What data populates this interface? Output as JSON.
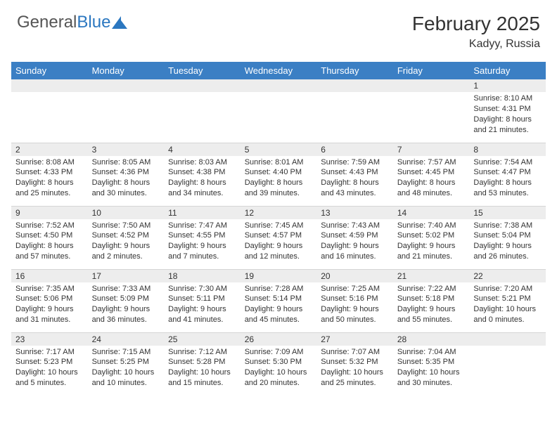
{
  "logo": {
    "text_gray": "General",
    "text_blue": "Blue"
  },
  "heading": {
    "title": "February 2025",
    "location": "Kadyy, Russia"
  },
  "weekdays": [
    "Sunday",
    "Monday",
    "Tuesday",
    "Wednesday",
    "Thursday",
    "Friday",
    "Saturday"
  ],
  "colors": {
    "header_bg": "#3b7fc4",
    "header_text": "#ffffff",
    "daynum_bg": "#ededed",
    "logo_blue": "#2b77c0",
    "border": "#d5d5d5"
  },
  "weeks": [
    [
      {
        "day": "",
        "sunrise": "",
        "sunset": "",
        "daylight": ""
      },
      {
        "day": "",
        "sunrise": "",
        "sunset": "",
        "daylight": ""
      },
      {
        "day": "",
        "sunrise": "",
        "sunset": "",
        "daylight": ""
      },
      {
        "day": "",
        "sunrise": "",
        "sunset": "",
        "daylight": ""
      },
      {
        "day": "",
        "sunrise": "",
        "sunset": "",
        "daylight": ""
      },
      {
        "day": "",
        "sunrise": "",
        "sunset": "",
        "daylight": ""
      },
      {
        "day": "1",
        "sunrise": "Sunrise: 8:10 AM",
        "sunset": "Sunset: 4:31 PM",
        "daylight": "Daylight: 8 hours and 21 minutes."
      }
    ],
    [
      {
        "day": "2",
        "sunrise": "Sunrise: 8:08 AM",
        "sunset": "Sunset: 4:33 PM",
        "daylight": "Daylight: 8 hours and 25 minutes."
      },
      {
        "day": "3",
        "sunrise": "Sunrise: 8:05 AM",
        "sunset": "Sunset: 4:36 PM",
        "daylight": "Daylight: 8 hours and 30 minutes."
      },
      {
        "day": "4",
        "sunrise": "Sunrise: 8:03 AM",
        "sunset": "Sunset: 4:38 PM",
        "daylight": "Daylight: 8 hours and 34 minutes."
      },
      {
        "day": "5",
        "sunrise": "Sunrise: 8:01 AM",
        "sunset": "Sunset: 4:40 PM",
        "daylight": "Daylight: 8 hours and 39 minutes."
      },
      {
        "day": "6",
        "sunrise": "Sunrise: 7:59 AM",
        "sunset": "Sunset: 4:43 PM",
        "daylight": "Daylight: 8 hours and 43 minutes."
      },
      {
        "day": "7",
        "sunrise": "Sunrise: 7:57 AM",
        "sunset": "Sunset: 4:45 PM",
        "daylight": "Daylight: 8 hours and 48 minutes."
      },
      {
        "day": "8",
        "sunrise": "Sunrise: 7:54 AM",
        "sunset": "Sunset: 4:47 PM",
        "daylight": "Daylight: 8 hours and 53 minutes."
      }
    ],
    [
      {
        "day": "9",
        "sunrise": "Sunrise: 7:52 AM",
        "sunset": "Sunset: 4:50 PM",
        "daylight": "Daylight: 8 hours and 57 minutes."
      },
      {
        "day": "10",
        "sunrise": "Sunrise: 7:50 AM",
        "sunset": "Sunset: 4:52 PM",
        "daylight": "Daylight: 9 hours and 2 minutes."
      },
      {
        "day": "11",
        "sunrise": "Sunrise: 7:47 AM",
        "sunset": "Sunset: 4:55 PM",
        "daylight": "Daylight: 9 hours and 7 minutes."
      },
      {
        "day": "12",
        "sunrise": "Sunrise: 7:45 AM",
        "sunset": "Sunset: 4:57 PM",
        "daylight": "Daylight: 9 hours and 12 minutes."
      },
      {
        "day": "13",
        "sunrise": "Sunrise: 7:43 AM",
        "sunset": "Sunset: 4:59 PM",
        "daylight": "Daylight: 9 hours and 16 minutes."
      },
      {
        "day": "14",
        "sunrise": "Sunrise: 7:40 AM",
        "sunset": "Sunset: 5:02 PM",
        "daylight": "Daylight: 9 hours and 21 minutes."
      },
      {
        "day": "15",
        "sunrise": "Sunrise: 7:38 AM",
        "sunset": "Sunset: 5:04 PM",
        "daylight": "Daylight: 9 hours and 26 minutes."
      }
    ],
    [
      {
        "day": "16",
        "sunrise": "Sunrise: 7:35 AM",
        "sunset": "Sunset: 5:06 PM",
        "daylight": "Daylight: 9 hours and 31 minutes."
      },
      {
        "day": "17",
        "sunrise": "Sunrise: 7:33 AM",
        "sunset": "Sunset: 5:09 PM",
        "daylight": "Daylight: 9 hours and 36 minutes."
      },
      {
        "day": "18",
        "sunrise": "Sunrise: 7:30 AM",
        "sunset": "Sunset: 5:11 PM",
        "daylight": "Daylight: 9 hours and 41 minutes."
      },
      {
        "day": "19",
        "sunrise": "Sunrise: 7:28 AM",
        "sunset": "Sunset: 5:14 PM",
        "daylight": "Daylight: 9 hours and 45 minutes."
      },
      {
        "day": "20",
        "sunrise": "Sunrise: 7:25 AM",
        "sunset": "Sunset: 5:16 PM",
        "daylight": "Daylight: 9 hours and 50 minutes."
      },
      {
        "day": "21",
        "sunrise": "Sunrise: 7:22 AM",
        "sunset": "Sunset: 5:18 PM",
        "daylight": "Daylight: 9 hours and 55 minutes."
      },
      {
        "day": "22",
        "sunrise": "Sunrise: 7:20 AM",
        "sunset": "Sunset: 5:21 PM",
        "daylight": "Daylight: 10 hours and 0 minutes."
      }
    ],
    [
      {
        "day": "23",
        "sunrise": "Sunrise: 7:17 AM",
        "sunset": "Sunset: 5:23 PM",
        "daylight": "Daylight: 10 hours and 5 minutes."
      },
      {
        "day": "24",
        "sunrise": "Sunrise: 7:15 AM",
        "sunset": "Sunset: 5:25 PM",
        "daylight": "Daylight: 10 hours and 10 minutes."
      },
      {
        "day": "25",
        "sunrise": "Sunrise: 7:12 AM",
        "sunset": "Sunset: 5:28 PM",
        "daylight": "Daylight: 10 hours and 15 minutes."
      },
      {
        "day": "26",
        "sunrise": "Sunrise: 7:09 AM",
        "sunset": "Sunset: 5:30 PM",
        "daylight": "Daylight: 10 hours and 20 minutes."
      },
      {
        "day": "27",
        "sunrise": "Sunrise: 7:07 AM",
        "sunset": "Sunset: 5:32 PM",
        "daylight": "Daylight: 10 hours and 25 minutes."
      },
      {
        "day": "28",
        "sunrise": "Sunrise: 7:04 AM",
        "sunset": "Sunset: 5:35 PM",
        "daylight": "Daylight: 10 hours and 30 minutes."
      },
      {
        "day": "",
        "sunrise": "",
        "sunset": "",
        "daylight": ""
      }
    ]
  ]
}
